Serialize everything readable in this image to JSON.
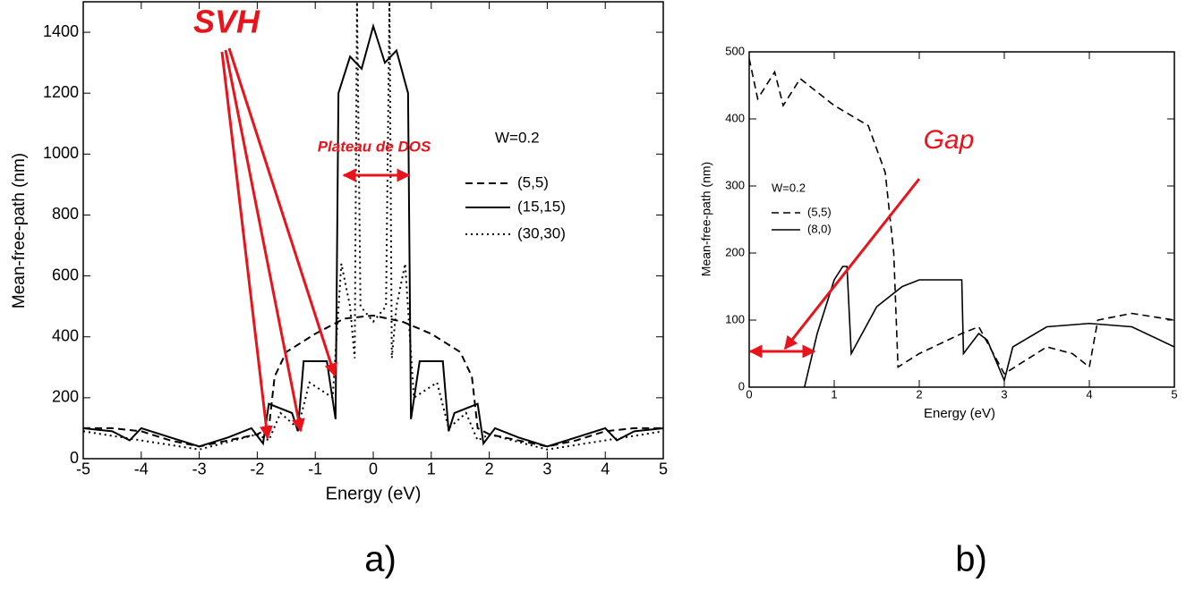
{
  "chart_data": [
    {
      "type": "line",
      "x_label": "Energy (eV)",
      "y_label": "Mean-free-path (nm)",
      "panel_label": "a)",
      "legend_title": "W=0.2",
      "annotations": [
        "SVH",
        "Plateau de DOS"
      ],
      "xlim": [
        -5,
        5
      ],
      "xticks": [
        -5,
        -4,
        -3,
        -2,
        -1,
        0,
        1,
        2,
        3,
        4,
        5
      ],
      "ylim": [
        0,
        1500
      ],
      "yticks": [
        0,
        200,
        400,
        600,
        800,
        1000,
        1200,
        1400
      ],
      "series": [
        {
          "name": "(5,5)",
          "color": "#000000",
          "style": "dashed",
          "x": [
            -5,
            -4.5,
            -4,
            -3.5,
            -3,
            -2.5,
            -2,
            -1.8,
            -1.7,
            -1.5,
            -1,
            -0.5,
            0,
            0.5,
            1,
            1.5,
            1.7,
            1.8,
            2,
            2.5,
            3,
            3.5,
            4,
            4.5,
            5
          ],
          "values": [
            100,
            100,
            90,
            60,
            40,
            60,
            80,
            100,
            270,
            350,
            410,
            460,
            470,
            450,
            410,
            350,
            270,
            100,
            80,
            60,
            40,
            60,
            90,
            100,
            100
          ]
        },
        {
          "name": "(15,15)",
          "color": "#000000",
          "style": "solid",
          "x": [
            -5,
            -4.5,
            -4.2,
            -4,
            -3.5,
            -3,
            -2.5,
            -2.1,
            -1.9,
            -1.8,
            -1.4,
            -1.3,
            -1.2,
            -0.8,
            -0.65,
            -0.6,
            -0.4,
            -0.2,
            0,
            0.2,
            0.4,
            0.6,
            0.65,
            0.8,
            1.2,
            1.3,
            1.4,
            1.8,
            1.9,
            2.1,
            2.5,
            3,
            3.5,
            4,
            4.2,
            4.5,
            5
          ],
          "values": [
            100,
            90,
            60,
            100,
            70,
            40,
            70,
            100,
            50,
            180,
            150,
            90,
            320,
            320,
            130,
            1200,
            1320,
            1280,
            1420,
            1300,
            1340,
            1200,
            130,
            320,
            320,
            90,
            150,
            180,
            50,
            100,
            70,
            40,
            70,
            100,
            60,
            90,
            100
          ]
        },
        {
          "name": "(30,30)",
          "color": "#000000",
          "style": "dotted",
          "x": [
            -5,
            -3,
            -2,
            -1.8,
            -1.6,
            -1.3,
            -1.1,
            -0.7,
            -0.55,
            -0.4,
            -0.32,
            -0.28,
            -0.22,
            0,
            0.22,
            0.28,
            0.32,
            0.4,
            0.55,
            0.7,
            1.1,
            1.3,
            1.6,
            1.8,
            2,
            3,
            5
          ],
          "values": [
            90,
            30,
            80,
            60,
            150,
            100,
            250,
            200,
            640,
            500,
            330,
            1500,
            500,
            450,
            500,
            1500,
            330,
            500,
            640,
            200,
            250,
            100,
            150,
            60,
            80,
            30,
            90
          ]
        }
      ]
    },
    {
      "type": "line",
      "x_label": "Energy (eV)",
      "y_label": "Mean-free-path (nm)",
      "panel_label": "b)",
      "legend_title": "W=0.2",
      "annotations": [
        "Gap"
      ],
      "xlim": [
        0,
        5
      ],
      "xticks": [
        0,
        1,
        2,
        3,
        4,
        5
      ],
      "ylim": [
        0,
        500
      ],
      "yticks": [
        0,
        100,
        200,
        300,
        400,
        500
      ],
      "series": [
        {
          "name": "(5,5)",
          "color": "#000000",
          "style": "dashed",
          "x": [
            0,
            0.1,
            0.3,
            0.4,
            0.6,
            1,
            1.4,
            1.6,
            1.7,
            1.75,
            2,
            2.5,
            2.7,
            3,
            3.5,
            3.8,
            4,
            4.1,
            4.5,
            5
          ],
          "values": [
            490,
            430,
            470,
            420,
            460,
            420,
            390,
            320,
            200,
            30,
            50,
            80,
            90,
            20,
            60,
            50,
            30,
            100,
            110,
            100
          ]
        },
        {
          "name": "(8,0)",
          "color": "#000000",
          "style": "solid",
          "x": [
            0.65,
            0.8,
            1,
            1.1,
            1.15,
            1.2,
            1.5,
            1.8,
            2,
            2.5,
            2.52,
            2.7,
            2.8,
            3,
            3.1,
            3.5,
            4,
            4.5,
            5
          ],
          "values": [
            0,
            80,
            160,
            180,
            180,
            50,
            120,
            150,
            160,
            160,
            50,
            80,
            70,
            10,
            60,
            90,
            95,
            90,
            60
          ]
        }
      ]
    }
  ]
}
